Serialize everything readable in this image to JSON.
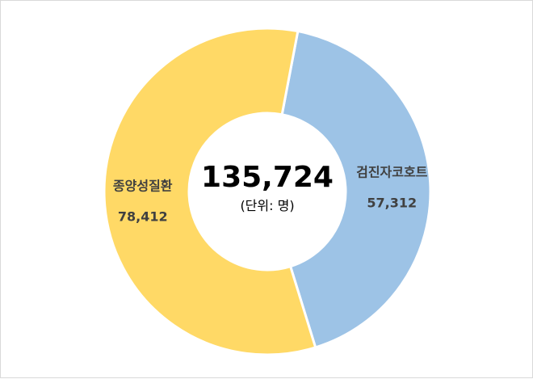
{
  "chart_data": {
    "type": "pie",
    "subtype": "donut",
    "categories": [
      "검진자코호트",
      "종양성질환"
    ],
    "values": [
      57312,
      78412
    ],
    "value_labels": [
      "57,312",
      "78,412"
    ],
    "colors": [
      "#9dc3e6",
      "#ffd966"
    ],
    "center": {
      "total": "135,724",
      "unit": "(단위: 명)"
    },
    "legend": "none"
  }
}
